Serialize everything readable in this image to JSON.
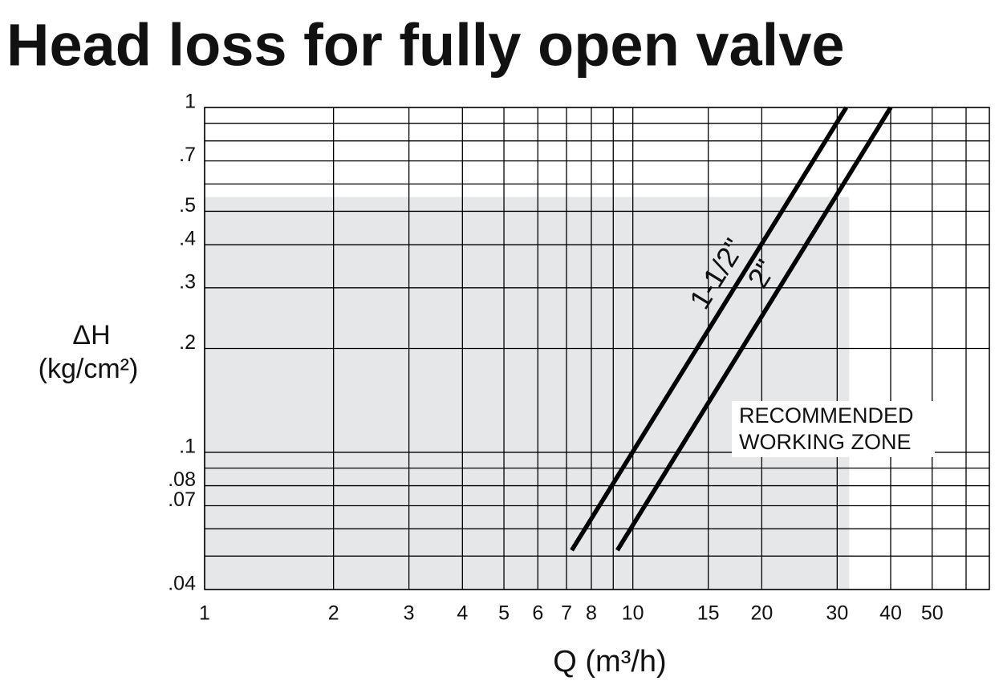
{
  "chart_data": {
    "type": "line",
    "title": "Head loss for fully open valve",
    "x_label": "Q (m³/h)",
    "y_label": [
      "ΔH",
      "(kg/cm²)"
    ],
    "xscale": "log",
    "yscale": "log",
    "xlim": [
      1,
      68
    ],
    "ylim": [
      0.04,
      1
    ],
    "xticks": [
      1,
      2,
      3,
      4,
      5,
      6,
      7,
      8,
      10,
      15,
      20,
      30,
      40,
      50
    ],
    "xminor": [
      9,
      60
    ],
    "yticks": [
      1,
      {
        "value": 0.7,
        "label": ".7"
      },
      {
        "value": 0.5,
        "label": ".5"
      },
      {
        "value": 0.4,
        "label": ".4"
      },
      {
        "value": 0.3,
        "label": ".3"
      },
      {
        "value": 0.2,
        "label": ".2"
      },
      {
        "value": 0.1,
        "label": ".1"
      },
      {
        "value": 0.08,
        "label": ".08"
      },
      {
        "value": 0.07,
        "label": ".07"
      },
      {
        "value": 0.04,
        "label": ".04"
      }
    ],
    "yminor": [
      0.9,
      0.8,
      0.6,
      0.09,
      0.06,
      0.05
    ],
    "grid": true,
    "zone": {
      "label": [
        "RECOMMENDED",
        "WORKING ZONE"
      ],
      "color": "#e6e7e8",
      "x_max": 32,
      "y_max": 0.55
    },
    "series": [
      {
        "name": "1-1/2\"",
        "color": "#000000",
        "x": [
          7.2,
          31.5
        ],
        "values": [
          0.052,
          1
        ]
      },
      {
        "name": "2\"",
        "color": "#000000",
        "x": [
          9.2,
          40
        ],
        "values": [
          0.052,
          1
        ]
      }
    ]
  }
}
